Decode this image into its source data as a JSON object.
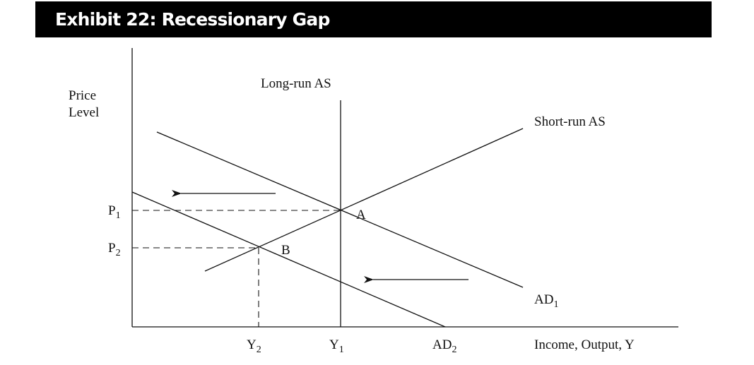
{
  "title": "Exhibit 22: Recessionary Gap",
  "colors": {
    "title_bar": "#000000",
    "title_text": "#ffffff",
    "ink": "#111111"
  },
  "axes": {
    "y_label_line1": "Price",
    "y_label_line2": "Level",
    "x_label": "Income, Output, Y"
  },
  "curves": {
    "long_run_as": "Long-run AS",
    "short_run_as": "Short-run AS",
    "ad1_main": "AD",
    "ad1_sub": "1",
    "ad2_main": "AD",
    "ad2_sub": "2"
  },
  "points": {
    "a": "A",
    "b": "B"
  },
  "ticks": {
    "p1_main": "P",
    "p1_sub": "1",
    "p2_main": "P",
    "p2_sub": "2",
    "y1_main": "Y",
    "y1_sub": "1",
    "y2_main": "Y",
    "y2_sub": "2"
  },
  "shift_arrows": 2
}
